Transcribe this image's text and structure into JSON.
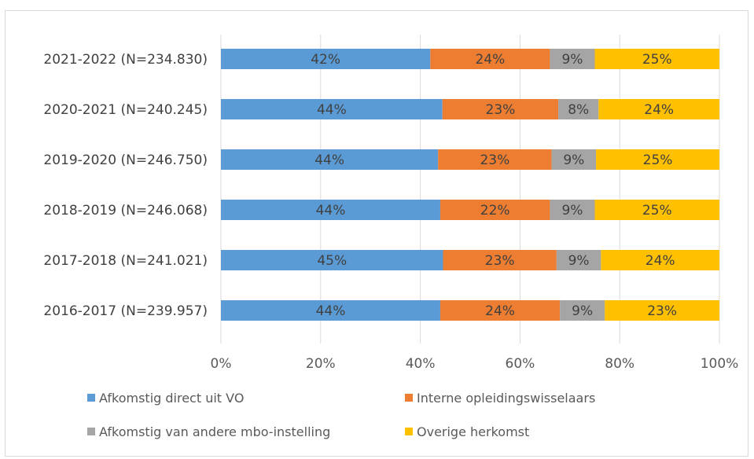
{
  "chart_data": {
    "type": "bar",
    "orientation": "horizontal",
    "stacked": true,
    "categories": [
      "2021-2022 (N=234.830)",
      "2020-2021 (N=240.245)",
      "2019-2020 (N=246.750)",
      "2018-2019 (N=246.068)",
      "2017-2018 (N=241.021)",
      "2016-2017 (N=239.957)"
    ],
    "series": [
      {
        "name": "Afkomstig direct uit VO",
        "color": "#5b9bd5",
        "values": [
          42,
          44,
          44,
          44,
          45,
          44
        ],
        "labels": [
          "42%",
          "44%",
          "44%",
          "44%",
          "45%",
          "44%"
        ]
      },
      {
        "name": "Interne opleidingswisselaars",
        "color": "#ed7d31",
        "values": [
          24,
          23,
          23,
          22,
          23,
          24
        ],
        "labels": [
          "24%",
          "23%",
          "23%",
          "22%",
          "23%",
          "24%"
        ]
      },
      {
        "name": "Afkomstig van andere mbo-instelling",
        "color": "#a5a5a5",
        "values": [
          9,
          8,
          9,
          9,
          9,
          9
        ],
        "labels": [
          "9%",
          "8%",
          "9%",
          "9%",
          "9%",
          "9%"
        ]
      },
      {
        "name": "Overige herkomst",
        "color": "#ffc000",
        "values": [
          25,
          24,
          25,
          25,
          24,
          23
        ],
        "labels": [
          "25%",
          "24%",
          "25%",
          "25%",
          "24%",
          "23%"
        ]
      }
    ],
    "xlim": [
      0,
      100
    ],
    "xticks": [
      "0%",
      "20%",
      "40%",
      "60%",
      "80%",
      "100%"
    ],
    "grid": true,
    "legend_position": "bottom"
  }
}
